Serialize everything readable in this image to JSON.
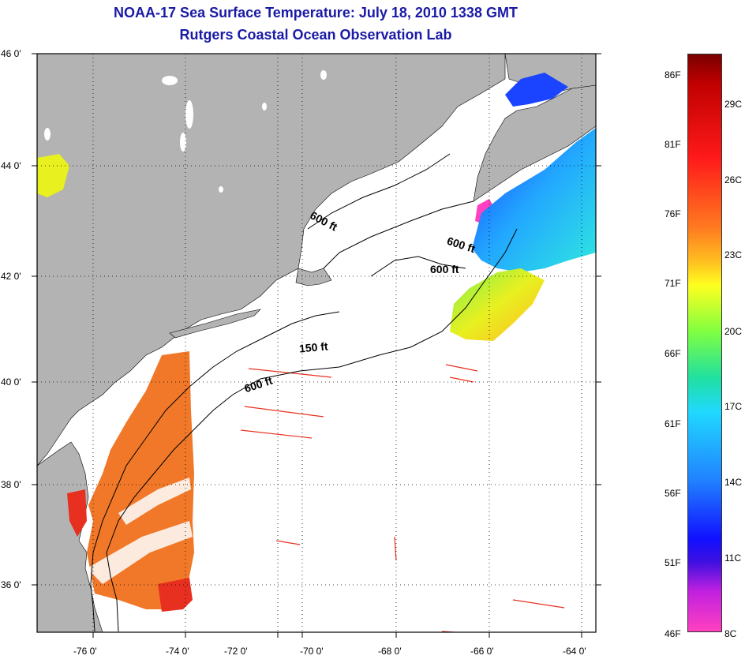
{
  "title": "NOAA-17 Sea Surface Temperature:  July 18, 2010 1338 GMT",
  "subtitle": "Rutgers Coastal Ocean Observation Lab",
  "latitude_labels": [
    "46 0'",
    "44 0'",
    "42 0'",
    "40 0'",
    "38 0'",
    "36 0'"
  ],
  "longitude_labels": [
    "-76 0'",
    "-74 0'",
    "-72 0'",
    "-70 0'",
    "-68 0'",
    "-66 0'",
    "-64 0'"
  ],
  "colorbar": {
    "fahrenheit": [
      "86F",
      "81F",
      "76F",
      "71F",
      "66F",
      "61F",
      "56F",
      "51F",
      "46F"
    ],
    "celsius": [
      "29C",
      "26C",
      "23C",
      "20C",
      "17C",
      "14C",
      "11C",
      "8C"
    ]
  },
  "depth_contours": [
    "600 ft",
    "600 ft",
    "600 ft",
    "150 ft",
    "600 ft"
  ],
  "colors": {
    "title": "#1a1aa6",
    "land": "#b3b3b3",
    "water": "#ffffff"
  }
}
